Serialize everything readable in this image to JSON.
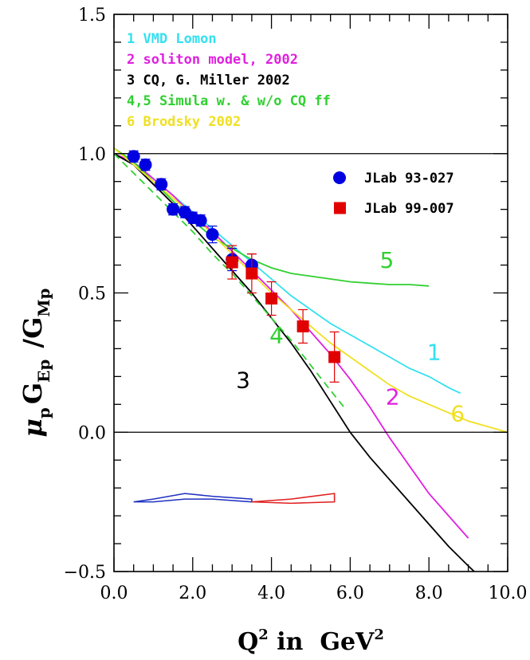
{
  "chart_data": {
    "type": "line",
    "xlabel": {
      "main": "Q",
      "sup": "2",
      "mid": " in  GeV",
      "sup2": "2"
    },
    "ylabel": {
      "mu": "μ",
      "mu_sub": "p",
      "g1": "G",
      "g1_sub": "Ep",
      "slash": "/G",
      "g2_sub": "Mp"
    },
    "xlim": [
      0,
      10
    ],
    "ylim": [
      -0.5,
      1.5
    ],
    "x_ticks": [
      {
        "value": 0,
        "label": "0.0"
      },
      {
        "value": 2,
        "label": "2.0"
      },
      {
        "value": 4,
        "label": "4.0"
      },
      {
        "value": 6,
        "label": "6.0"
      },
      {
        "value": 8,
        "label": "8.0"
      },
      {
        "value": 10,
        "label": "10.0"
      }
    ],
    "y_ticks": [
      {
        "value": -0.5,
        "label": "−0.5"
      },
      {
        "value": 0,
        "label": "0.0"
      },
      {
        "value": 0.5,
        "label": "0.5"
      },
      {
        "value": 1.0,
        "label": "1.0"
      },
      {
        "value": 1.5,
        "label": "1.5"
      }
    ],
    "reference_lines": [
      1.0,
      0.0
    ],
    "legend_lines": [
      {
        "text": "1 VMD Lomon",
        "color": "#33e0f0"
      },
      {
        "text": "2 soliton model, 2002",
        "color": "#e020e0"
      },
      {
        "text": "3 CQ, G. Miller 2002",
        "color": "#000000"
      },
      {
        "text": "4,5 Simula w. & w/o CQ ff",
        "color": "#30d030"
      },
      {
        "text": "6 Brodsky 2002",
        "color": "#f0e020"
      }
    ],
    "marker_legend": [
      {
        "label": "JLab 93-027",
        "marker": "circle",
        "color": "#0000e0"
      },
      {
        "label": "JLab 99-007",
        "marker": "square",
        "color": "#e00000"
      }
    ],
    "curves": [
      {
        "id": "1",
        "label": "1",
        "color": "#33e0f0",
        "dashed": false,
        "label_at": [
          7.95,
          0.26
        ],
        "points": [
          [
            0,
            1.02
          ],
          [
            0.5,
            0.97
          ],
          [
            1,
            0.91
          ],
          [
            1.5,
            0.85
          ],
          [
            2,
            0.79
          ],
          [
            2.5,
            0.73
          ],
          [
            3,
            0.67
          ],
          [
            3.5,
            0.61
          ],
          [
            4,
            0.55
          ],
          [
            4.5,
            0.49
          ],
          [
            5,
            0.44
          ],
          [
            5.5,
            0.39
          ],
          [
            6,
            0.35
          ],
          [
            6.5,
            0.31
          ],
          [
            7,
            0.27
          ],
          [
            7.5,
            0.23
          ],
          [
            8,
            0.2
          ],
          [
            8.5,
            0.16
          ],
          [
            8.8,
            0.14
          ]
        ]
      },
      {
        "id": "2",
        "label": "2",
        "color": "#e020e0",
        "dashed": false,
        "label_at": [
          6.9,
          0.1
        ],
        "points": [
          [
            0,
            1.0
          ],
          [
            0.5,
            0.97
          ],
          [
            1,
            0.91
          ],
          [
            1.5,
            0.85
          ],
          [
            2,
            0.78
          ],
          [
            2.5,
            0.72
          ],
          [
            3,
            0.65
          ],
          [
            3.5,
            0.58
          ],
          [
            4,
            0.51
          ],
          [
            4.5,
            0.44
          ],
          [
            5,
            0.36
          ],
          [
            5.5,
            0.28
          ],
          [
            6,
            0.19
          ],
          [
            6.5,
            0.09
          ],
          [
            7,
            -0.02
          ],
          [
            7.5,
            -0.12
          ],
          [
            8,
            -0.22
          ],
          [
            8.5,
            -0.3
          ],
          [
            9,
            -0.38
          ]
        ]
      },
      {
        "id": "3",
        "label": "3",
        "color": "#000000",
        "dashed": false,
        "label_at": [
          3.1,
          0.16
        ],
        "points": [
          [
            0,
            1.0
          ],
          [
            0.5,
            0.96
          ],
          [
            1,
            0.89
          ],
          [
            1.5,
            0.82
          ],
          [
            2,
            0.74
          ],
          [
            2.5,
            0.66
          ],
          [
            3,
            0.58
          ],
          [
            3.5,
            0.5
          ],
          [
            4,
            0.41
          ],
          [
            4.5,
            0.32
          ],
          [
            5,
            0.22
          ],
          [
            5.5,
            0.11
          ],
          [
            6,
            0.0
          ],
          [
            6.5,
            -0.09
          ],
          [
            7,
            -0.17
          ],
          [
            7.5,
            -0.25
          ],
          [
            8,
            -0.33
          ],
          [
            8.5,
            -0.41
          ],
          [
            9,
            -0.48
          ],
          [
            9.3,
            -0.52
          ]
        ]
      },
      {
        "id": "4",
        "label": "4",
        "color": "#30d030",
        "dashed": true,
        "label_at": [
          3.95,
          0.32
        ],
        "points": [
          [
            0,
            1.0
          ],
          [
            0.5,
            0.93
          ],
          [
            1,
            0.86
          ],
          [
            1.5,
            0.79
          ],
          [
            2,
            0.72
          ],
          [
            2.5,
            0.64
          ],
          [
            3,
            0.57
          ],
          [
            3.5,
            0.49
          ],
          [
            4,
            0.41
          ],
          [
            4.5,
            0.33
          ],
          [
            5,
            0.24
          ],
          [
            5.5,
            0.15
          ],
          [
            5.9,
            0.08
          ]
        ]
      },
      {
        "id": "5",
        "label": "5",
        "color": "#30d030",
        "dashed": false,
        "label_at": [
          6.75,
          0.59
        ],
        "points": [
          [
            0,
            1.02
          ],
          [
            0.5,
            0.97
          ],
          [
            1,
            0.9
          ],
          [
            1.5,
            0.83
          ],
          [
            2,
            0.76
          ],
          [
            2.5,
            0.7
          ],
          [
            3,
            0.66
          ],
          [
            3.5,
            0.62
          ],
          [
            4,
            0.59
          ],
          [
            4.5,
            0.57
          ],
          [
            5,
            0.56
          ],
          [
            5.5,
            0.55
          ],
          [
            6,
            0.54
          ],
          [
            6.5,
            0.535
          ],
          [
            7,
            0.53
          ],
          [
            7.5,
            0.53
          ],
          [
            8,
            0.525
          ]
        ]
      },
      {
        "id": "6",
        "label": "6",
        "color": "#f0e020",
        "dashed": false,
        "label_at": [
          8.55,
          0.04
        ],
        "points": [
          [
            0,
            1.02
          ],
          [
            0.5,
            0.96
          ],
          [
            1,
            0.9
          ],
          [
            1.5,
            0.84
          ],
          [
            2,
            0.78
          ],
          [
            2.5,
            0.71
          ],
          [
            3,
            0.64
          ],
          [
            3.5,
            0.57
          ],
          [
            4,
            0.5
          ],
          [
            4.5,
            0.44
          ],
          [
            5,
            0.38
          ],
          [
            5.5,
            0.32
          ],
          [
            6,
            0.27
          ],
          [
            6.5,
            0.22
          ],
          [
            7,
            0.17
          ],
          [
            7.5,
            0.13
          ],
          [
            8,
            0.1
          ],
          [
            8.5,
            0.07
          ],
          [
            9,
            0.04
          ],
          [
            9.5,
            0.02
          ],
          [
            10,
            0.0
          ]
        ]
      }
    ],
    "series": [
      {
        "name": "JLab 93-027",
        "marker": "circle",
        "color": "#0000e0",
        "points": [
          {
            "x": 0.5,
            "y": 0.99,
            "err": 0.02
          },
          {
            "x": 0.8,
            "y": 0.96,
            "err": 0.02
          },
          {
            "x": 1.2,
            "y": 0.89,
            "err": 0.02
          },
          {
            "x": 1.5,
            "y": 0.8,
            "err": 0.02
          },
          {
            "x": 1.8,
            "y": 0.79,
            "err": 0.02
          },
          {
            "x": 2.0,
            "y": 0.77,
            "err": 0.02
          },
          {
            "x": 2.2,
            "y": 0.76,
            "err": 0.02
          },
          {
            "x": 2.5,
            "y": 0.71,
            "err": 0.03
          },
          {
            "x": 3.0,
            "y": 0.62,
            "err": 0.04
          },
          {
            "x": 3.5,
            "y": 0.6,
            "err": 0.04
          }
        ]
      },
      {
        "name": "JLab 99-007",
        "marker": "square",
        "color": "#e00000",
        "points": [
          {
            "x": 3.0,
            "y": 0.61,
            "err": 0.06
          },
          {
            "x": 3.5,
            "y": 0.57,
            "err": 0.07
          },
          {
            "x": 4.0,
            "y": 0.48,
            "err": 0.06
          },
          {
            "x": 4.8,
            "y": 0.38,
            "err": 0.06
          },
          {
            "x": 5.6,
            "y": 0.27,
            "err": 0.09
          }
        ]
      }
    ],
    "systematic_bands": [
      {
        "name": "JLab 93-027 systematic",
        "color": "#2030c0",
        "polygon": [
          [
            0.5,
            -0.25
          ],
          [
            1,
            -0.24
          ],
          [
            1.8,
            -0.22
          ],
          [
            2.5,
            -0.23
          ],
          [
            3.5,
            -0.24
          ],
          [
            3.5,
            -0.25
          ],
          [
            2.5,
            -0.24
          ],
          [
            1.8,
            -0.24
          ],
          [
            1,
            -0.25
          ]
        ]
      },
      {
        "name": "JLab 99-007 systematic",
        "color": "#e02020",
        "polygon": [
          [
            3.5,
            -0.25
          ],
          [
            4.5,
            -0.24
          ],
          [
            5.6,
            -0.22
          ],
          [
            5.6,
            -0.25
          ],
          [
            4.5,
            -0.255
          ]
        ]
      }
    ]
  }
}
